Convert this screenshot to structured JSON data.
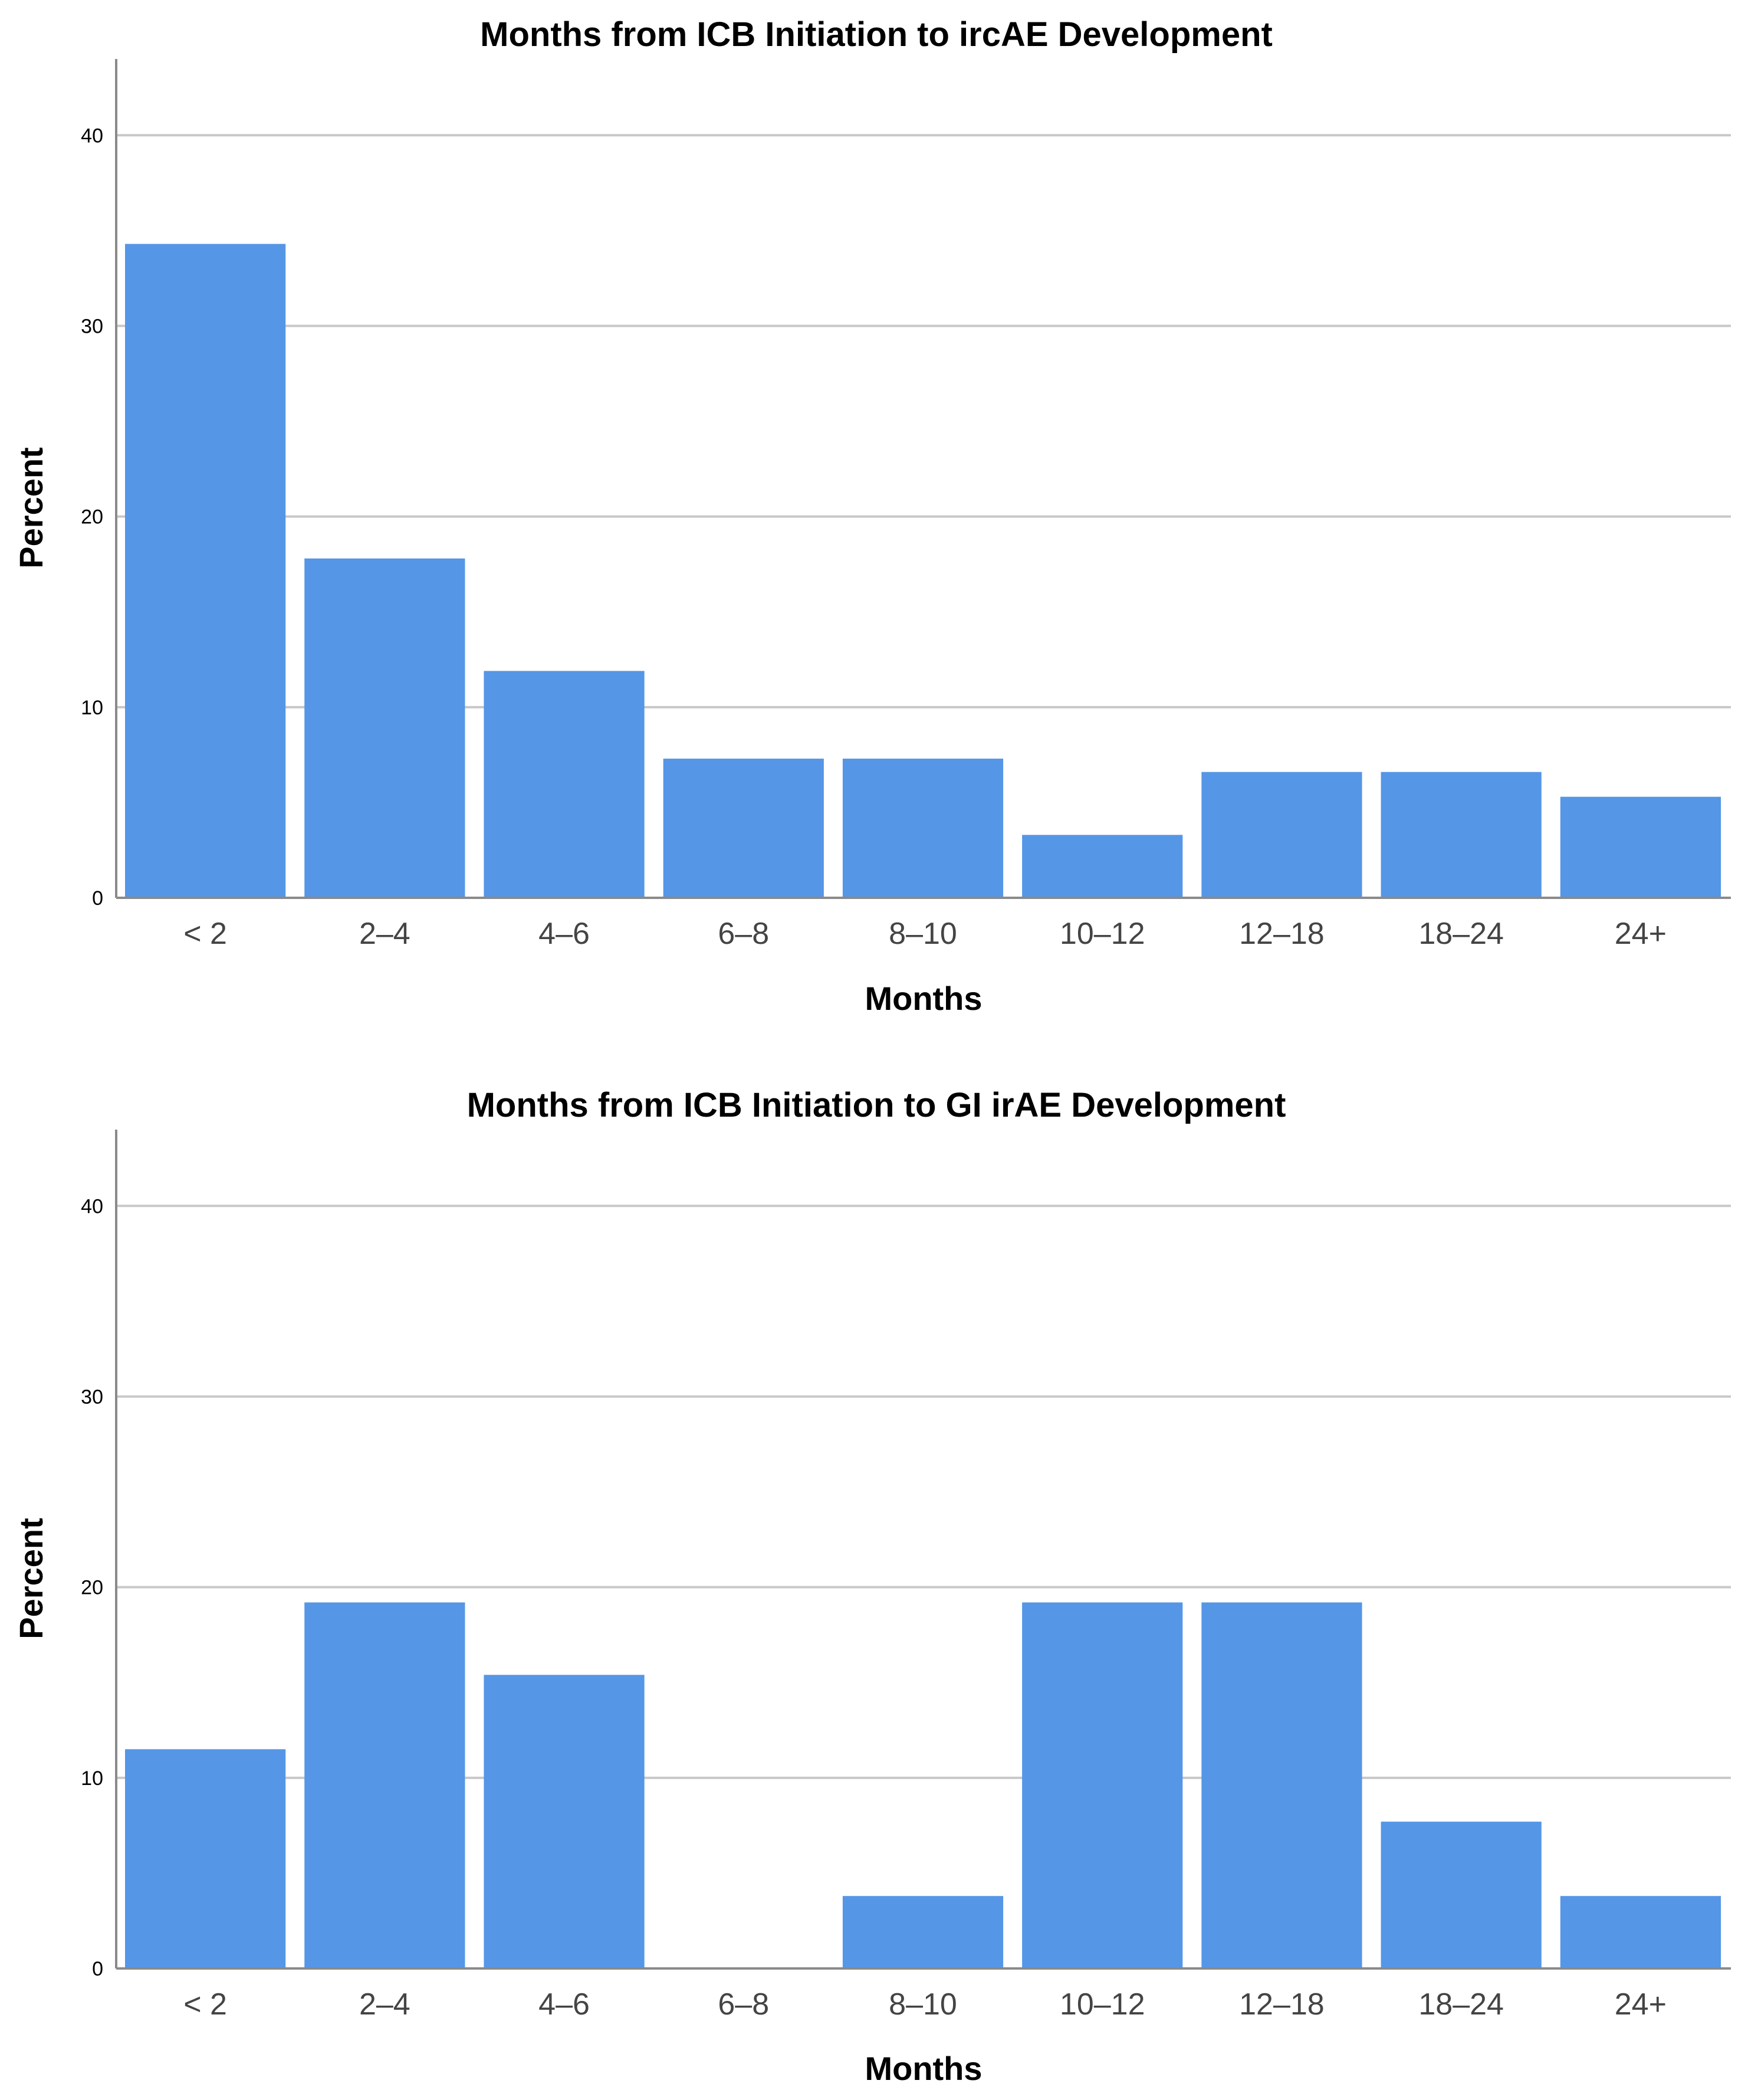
{
  "colors": {
    "bar": "#5596E6",
    "grid": "#C8C8C8",
    "axis": "#8A8A8A",
    "background": "#FFFFFF"
  },
  "chart_data": [
    {
      "type": "bar",
      "title": "Months from ICB Initiation to ircAE Development",
      "xlabel": "Months",
      "ylabel": "Percent",
      "ylim": [
        0,
        44
      ],
      "yticks": [
        "0",
        "10",
        "20",
        "30",
        "40"
      ],
      "grid": true,
      "categories": [
        "< 2",
        "2–4",
        "4–6",
        "6–8",
        "8–10",
        "10–12",
        "12–18",
        "18–24",
        "24+"
      ],
      "values": [
        34.3,
        17.8,
        11.9,
        7.3,
        7.3,
        3.3,
        6.6,
        6.6,
        5.3
      ]
    },
    {
      "type": "bar",
      "title": "Months from ICB Initiation to GI irAE Development",
      "xlabel": "Months",
      "ylabel": "Percent",
      "ylim": [
        0,
        44
      ],
      "yticks": [
        "0",
        "10",
        "20",
        "30",
        "40"
      ],
      "grid": true,
      "categories": [
        "< 2",
        "2–4",
        "4–6",
        "6–8",
        "8–10",
        "10–12",
        "12–18",
        "18–24",
        "24+"
      ],
      "values": [
        11.5,
        19.2,
        15.4,
        0,
        3.8,
        19.2,
        19.2,
        7.7,
        3.8
      ]
    }
  ]
}
